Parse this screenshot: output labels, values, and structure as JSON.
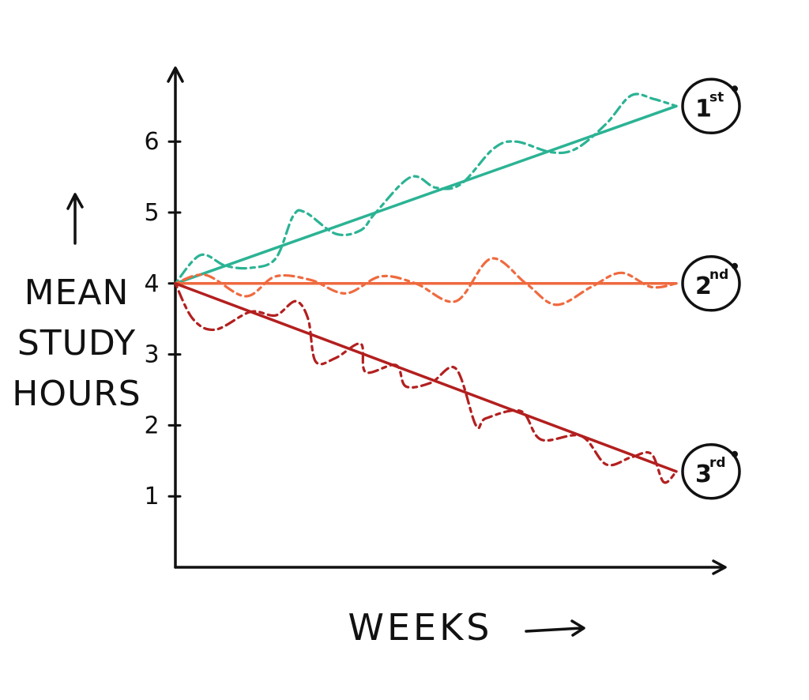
{
  "chart_data": {
    "type": "line",
    "xlabel": "WEEKS",
    "ylabel_lines": [
      "MEAN",
      "STUDY",
      "HOURS"
    ],
    "yticks": [
      1,
      2,
      3,
      4,
      5,
      6
    ],
    "ylim": [
      0,
      7
    ],
    "xlim": [
      0,
      10
    ],
    "grid": false,
    "colors": {
      "axis": "#111111",
      "first": "#2bb394",
      "second": "#ef6a3f",
      "third": "#b31f1f"
    },
    "series": [
      {
        "key": "first",
        "badge": "1",
        "badge_sup": "st",
        "trend": {
          "x": [
            0,
            10
          ],
          "y": [
            4.0,
            6.5
          ]
        },
        "values": {
          "x": [
            0,
            0.5,
            1.0,
            1.5,
            2.0,
            2.35,
            2.6,
            3.2,
            3.7,
            4.0,
            4.7,
            5.2,
            5.7,
            6.35,
            6.8,
            7.5,
            8.0,
            8.6,
            9.1,
            9.55,
            10.0
          ],
          "y": [
            4.0,
            4.4,
            4.25,
            4.22,
            4.35,
            4.95,
            5.0,
            4.7,
            4.75,
            5.0,
            5.5,
            5.35,
            5.4,
            5.9,
            6.0,
            5.85,
            5.9,
            6.25,
            6.65,
            6.6,
            6.5
          ]
        }
      },
      {
        "key": "second",
        "badge": "2",
        "badge_sup": "nd",
        "trend": {
          "x": [
            0,
            10
          ],
          "y": [
            4.0,
            4.0
          ]
        },
        "values": {
          "x": [
            0,
            0.6,
            1.4,
            2.0,
            2.7,
            3.4,
            4.1,
            4.8,
            5.6,
            6.3,
            7.0,
            7.6,
            8.3,
            8.9,
            9.5,
            10.0
          ],
          "y": [
            4.0,
            4.12,
            3.82,
            4.1,
            4.05,
            3.86,
            4.1,
            4.0,
            3.75,
            4.35,
            4.0,
            3.7,
            3.95,
            4.15,
            3.95,
            4.0
          ]
        }
      },
      {
        "key": "third",
        "badge": "3",
        "badge_sup": "rd",
        "trend": {
          "x": [
            0,
            10
          ],
          "y": [
            4.0,
            1.35
          ]
        },
        "values": {
          "x": [
            0,
            0.35,
            0.8,
            1.5,
            2.0,
            2.4,
            2.65,
            2.8,
            3.2,
            3.7,
            3.8,
            4.4,
            4.6,
            5.1,
            5.6,
            6.0,
            6.2,
            6.9,
            7.3,
            8.1,
            8.6,
            9.1,
            9.5,
            9.75,
            10.0
          ],
          "y": [
            4.0,
            3.5,
            3.35,
            3.6,
            3.55,
            3.75,
            3.5,
            2.9,
            2.95,
            3.15,
            2.75,
            2.85,
            2.55,
            2.6,
            2.8,
            2.0,
            2.1,
            2.2,
            1.8,
            1.85,
            1.45,
            1.55,
            1.6,
            1.2,
            1.35
          ]
        }
      }
    ]
  }
}
